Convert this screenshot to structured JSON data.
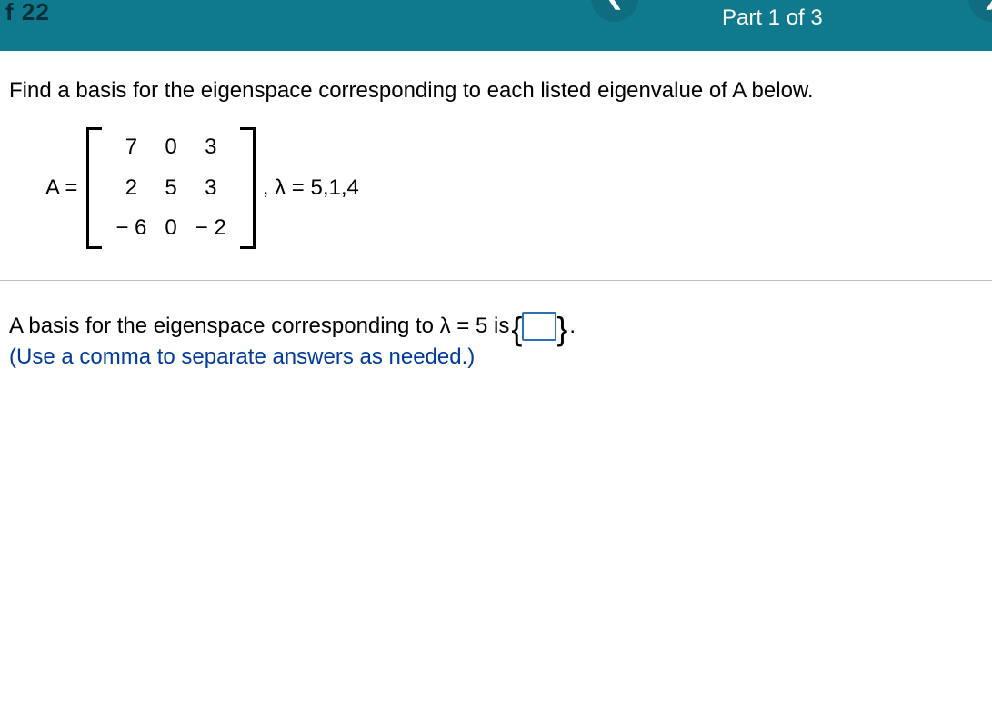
{
  "header": {
    "hw_label": "f 22",
    "part_label": "Part 1 of 3"
  },
  "question": {
    "prompt": "Find a basis for the eigenspace corresponding to each listed eigenvalue of A below.",
    "matrix_label": "A =",
    "matrix": {
      "rows": [
        [
          "7",
          "0",
          "3"
        ],
        [
          "2",
          "5",
          "3"
        ],
        [
          "− 6",
          "0",
          "− 2"
        ]
      ]
    },
    "after_matrix": ", λ = 5,1,4"
  },
  "answer": {
    "line_before": "A basis for the eigenspace corresponding to λ = 5 is ",
    "line_after": " .",
    "input_value": "",
    "hint": "(Use a comma to separate answers as needed.)"
  }
}
